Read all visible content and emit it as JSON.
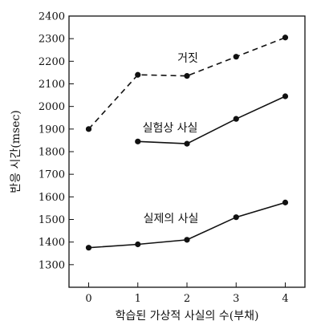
{
  "chart_data": {
    "type": "line",
    "xlabel": "학습된 가상적 사실의 수(부채)",
    "ylabel": "반응 시간(msec)",
    "x_ticks": [
      0,
      1,
      2,
      3,
      4
    ],
    "y_ticks": [
      1300,
      1400,
      1500,
      1600,
      1700,
      1800,
      1900,
      2000,
      2100,
      2200,
      2300,
      2400
    ],
    "xlim": [
      -0.4,
      4.4
    ],
    "ylim": [
      1200,
      2400
    ],
    "grid": false,
    "legend": "none",
    "series": [
      {
        "name": "거짓",
        "style": "dashed",
        "x": [
          0,
          1,
          2,
          3,
          4
        ],
        "y": [
          1900,
          2140,
          2135,
          2220,
          2305
        ]
      },
      {
        "name": "실험상 사실",
        "style": "solid",
        "x": [
          1,
          2,
          3,
          4
        ],
        "y": [
          1845,
          1835,
          1945,
          2045
        ]
      },
      {
        "name": "실제의 사실",
        "style": "solid",
        "x": [
          0,
          1,
          2,
          3,
          4
        ],
        "y": [
          1375,
          1390,
          1410,
          1510,
          1575
        ]
      }
    ]
  },
  "colors": {
    "ink": "#111111",
    "background": "#ffffff"
  }
}
